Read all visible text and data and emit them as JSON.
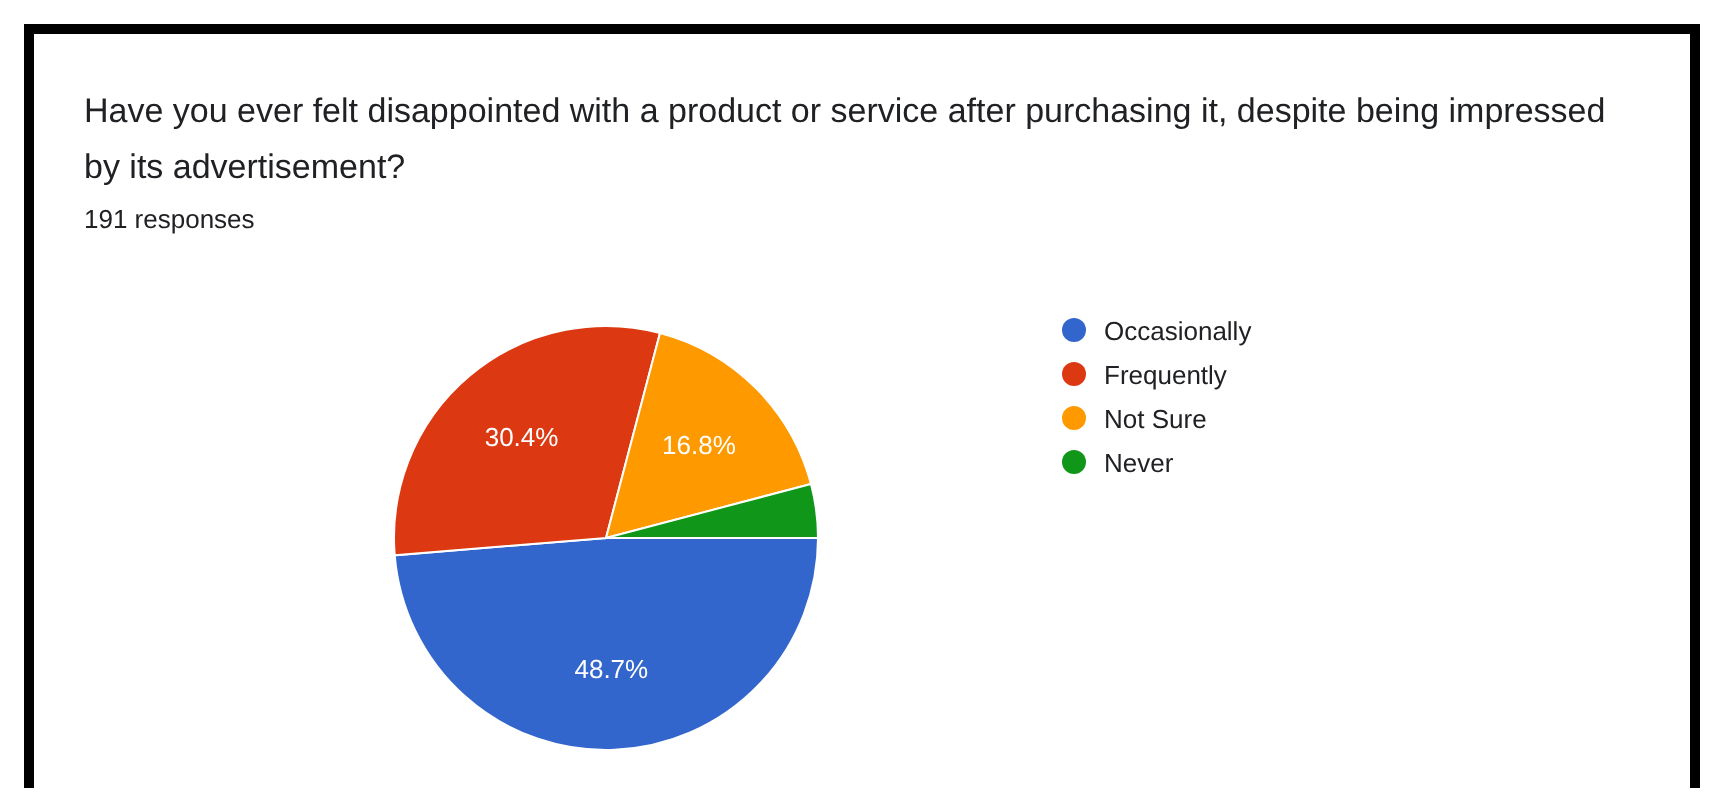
{
  "chart_data": {
    "type": "pie",
    "title": "Have you ever felt disappointed with a product or service after purchasing it, despite being impressed by its advertisement?",
    "subtitle": "191 responses",
    "categories": [
      "Occasionally",
      "Frequently",
      "Not Sure",
      "Never"
    ],
    "values": [
      48.7,
      30.4,
      16.8,
      4.1
    ],
    "colors": [
      "#3366cc",
      "#dc3912",
      "#ff9900",
      "#109618"
    ],
    "value_labels": [
      "48.7%",
      "30.4%",
      "16.8%",
      null
    ],
    "legend": "right"
  }
}
